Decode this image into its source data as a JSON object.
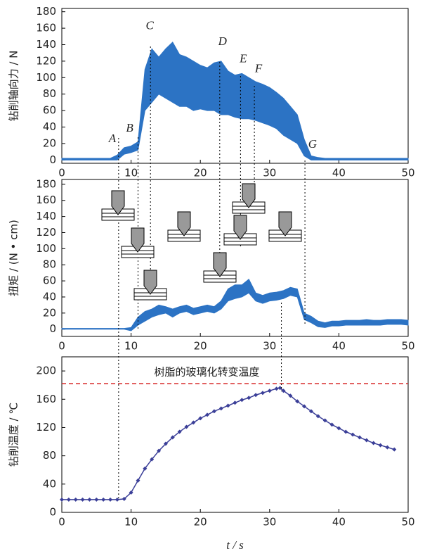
{
  "chart_data": [
    {
      "type": "band",
      "ylabel": "钻削轴向力 / N",
      "color": "#2c73c4",
      "x": [
        0,
        1,
        2,
        3,
        4,
        5,
        6,
        7,
        8,
        9,
        10,
        11,
        12,
        13,
        14,
        15,
        16,
        17,
        18,
        19,
        20,
        21,
        22,
        23,
        24,
        25,
        26,
        27,
        28,
        29,
        30,
        31,
        32,
        33,
        34,
        35,
        36,
        37,
        38,
        39,
        40,
        41,
        42,
        43,
        44,
        45,
        46,
        47,
        48,
        49,
        50
      ],
      "upper": [
        2,
        2,
        2,
        2,
        2,
        2,
        2,
        2,
        6,
        15,
        17,
        22,
        110,
        135,
        125,
        135,
        143,
        128,
        125,
        120,
        115,
        112,
        118,
        120,
        108,
        103,
        105,
        100,
        95,
        92,
        88,
        82,
        75,
        65,
        55,
        25,
        5,
        3,
        2,
        2,
        2,
        2,
        2,
        2,
        2,
        2,
        2,
        2,
        2,
        2,
        2
      ],
      "lower": [
        0,
        0,
        0,
        0,
        0,
        0,
        0,
        0,
        0,
        7,
        9,
        12,
        60,
        70,
        80,
        75,
        70,
        65,
        65,
        60,
        62,
        60,
        60,
        55,
        55,
        52,
        50,
        50,
        48,
        45,
        42,
        38,
        30,
        25,
        20,
        5,
        0,
        0,
        0,
        0,
        0,
        0,
        0,
        0,
        0,
        0,
        0,
        0,
        0,
        0,
        0
      ],
      "xlim": [
        0,
        50
      ],
      "xticks": [
        0,
        10,
        20,
        30,
        40,
        50
      ],
      "ylim": [
        -4,
        184
      ],
      "yticks": [
        0,
        20,
        40,
        60,
        80,
        100,
        120,
        140,
        160,
        180
      ],
      "annotations": [
        {
          "text": "A",
          "x": 7.3,
          "y": 25
        },
        {
          "text": "B",
          "x": 9.8,
          "y": 38
        },
        {
          "text": "C",
          "x": 12.7,
          "y": 162
        },
        {
          "text": "D",
          "x": 23.2,
          "y": 143
        },
        {
          "text": "E",
          "x": 26.2,
          "y": 122
        },
        {
          "text": "F",
          "x": 28.4,
          "y": 110
        },
        {
          "text": "G",
          "x": 36.2,
          "y": 18
        }
      ]
    },
    {
      "type": "band",
      "ylabel": "扭矩 / (N • cm)",
      "color": "#2c73c4",
      "x": [
        0,
        1,
        2,
        3,
        4,
        5,
        6,
        7,
        8,
        9,
        10,
        11,
        12,
        13,
        14,
        15,
        16,
        17,
        18,
        19,
        20,
        21,
        22,
        23,
        24,
        25,
        26,
        27,
        28,
        29,
        30,
        31,
        32,
        33,
        34,
        35,
        36,
        37,
        38,
        39,
        40,
        41,
        42,
        43,
        44,
        45,
        46,
        47,
        48,
        49,
        50
      ],
      "upper": [
        1,
        1,
        1,
        1,
        1,
        1,
        1,
        1,
        1,
        1,
        2,
        15,
        22,
        25,
        30,
        28,
        25,
        28,
        30,
        26,
        28,
        30,
        28,
        35,
        50,
        55,
        55,
        62,
        45,
        42,
        45,
        46,
        48,
        52,
        50,
        20,
        16,
        10,
        8,
        10,
        10,
        11,
        11,
        11,
        12,
        11,
        11,
        12,
        12,
        12,
        11
      ],
      "lower": [
        0,
        0,
        0,
        0,
        0,
        0,
        0,
        0,
        0,
        0,
        -2,
        5,
        10,
        15,
        18,
        20,
        15,
        20,
        22,
        18,
        20,
        22,
        20,
        25,
        35,
        38,
        40,
        45,
        35,
        32,
        35,
        36,
        38,
        42,
        40,
        12,
        8,
        3,
        2,
        4,
        4,
        5,
        5,
        5,
        5,
        5,
        5,
        6,
        6,
        6,
        5
      ],
      "xlim": [
        0,
        50
      ],
      "xticks": [
        0,
        10,
        20,
        30,
        40,
        50
      ],
      "ylim": [
        -9,
        186
      ],
      "yticks": [
        0,
        20,
        40,
        60,
        80,
        100,
        120,
        140,
        160,
        180
      ]
    },
    {
      "type": "line",
      "ylabel": "钻削温度 / ℃",
      "xlabel": "t / s",
      "color": "#3b3f98",
      "x": [
        0,
        1,
        2,
        3,
        4,
        5,
        6,
        7,
        8,
        9,
        10,
        11,
        12,
        13,
        14,
        15,
        16,
        17,
        18,
        19,
        20,
        21,
        22,
        23,
        24,
        25,
        26,
        27,
        28,
        29,
        30,
        31,
        31.5,
        32,
        33,
        34,
        35,
        36,
        37,
        38,
        39,
        40,
        41,
        42,
        43,
        44,
        45,
        46,
        47,
        48
      ],
      "values": [
        18,
        18,
        18,
        18,
        18,
        18,
        18,
        18,
        18,
        19,
        28,
        45,
        62,
        75,
        87,
        97,
        106,
        114,
        121,
        127,
        133,
        138,
        143,
        147,
        151,
        155,
        159,
        162,
        166,
        169,
        172,
        175,
        176,
        172,
        165,
        157,
        150,
        143,
        136,
        130,
        124,
        119,
        114,
        110,
        106,
        102,
        98,
        95,
        92,
        89
      ],
      "xlim": [
        0,
        50
      ],
      "xticks": [
        0,
        10,
        20,
        30,
        40,
        50
      ],
      "ylim": [
        0,
        220
      ],
      "yticks": [
        0,
        40,
        80,
        120,
        160,
        200
      ],
      "reference_line": {
        "y": 182,
        "label": "树脂的玻璃化转变温度",
        "color": "#d62728"
      }
    }
  ],
  "guide_lines": [
    8.2,
    11,
    12.8,
    22.8,
    25.8,
    27.8,
    35.1,
    31.7
  ]
}
